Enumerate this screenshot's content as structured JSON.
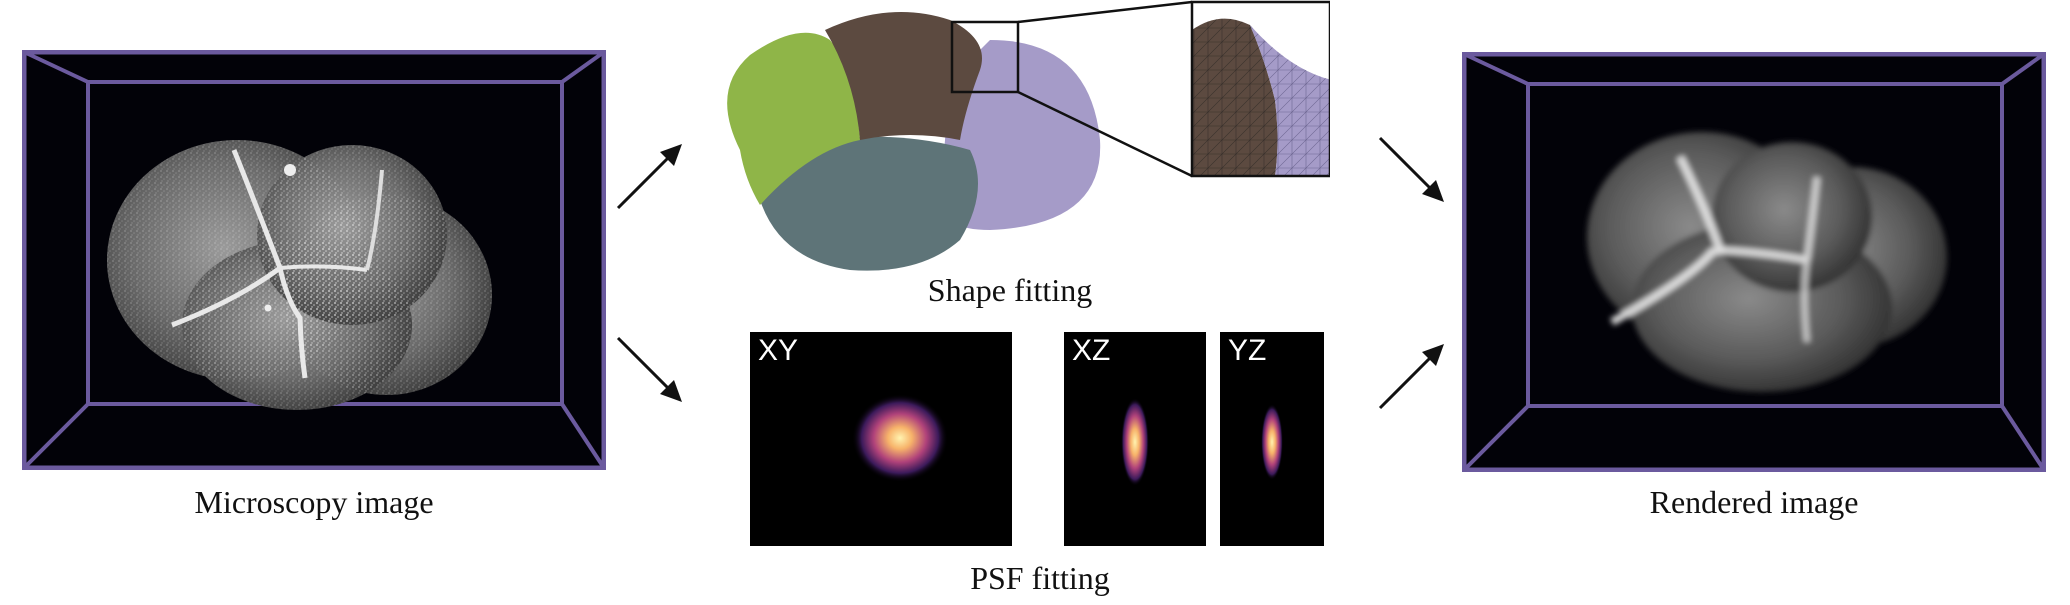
{
  "figure": {
    "microscopy_caption": "Microscopy image",
    "shape_caption": "Shape fitting",
    "psf_caption": "PSF fitting",
    "rendered_caption": "Rendered image",
    "psf_panels": [
      "XY",
      "XZ",
      "YZ"
    ]
  },
  "colors": {
    "frame": "#6b5a9e",
    "cell_green": "#8fb548",
    "cell_brown": "#5c4a40",
    "cell_lavender": "#a59bc8",
    "cell_slate": "#5e7478",
    "background_dark": "#020208"
  }
}
